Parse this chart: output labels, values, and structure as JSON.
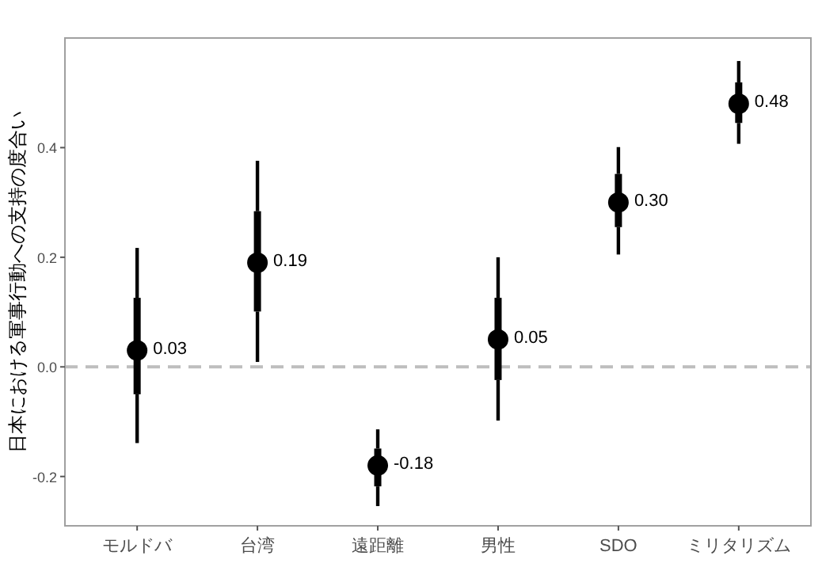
{
  "chart_data": {
    "type": "scatter",
    "ylabel": "日本における軍事行動への支持の度合い",
    "categories": [
      "モルドバ",
      "台湾",
      "遠距離",
      "男性",
      "SDO",
      "ミリタリズム"
    ],
    "series": [
      {
        "type": "box",
        "color": "#000000",
        "boxes": [
          {
            "low": -0.139,
            "q1": -0.05,
            "median": 0.03,
            "q3": 0.126,
            "high": 0.217
          },
          {
            "low": 0.009,
            "q1": 0.101,
            "median": 0.19,
            "q3": 0.284,
            "high": 0.376
          },
          {
            "low": -0.254,
            "q1": -0.218,
            "median": -0.18,
            "q3": -0.149,
            "high": -0.114
          },
          {
            "low": -0.098,
            "q1": -0.024,
            "median": 0.05,
            "q3": 0.126,
            "high": 0.2
          },
          {
            "low": 0.205,
            "q1": 0.255,
            "median": 0.3,
            "q3": 0.352,
            "high": 0.401
          },
          {
            "low": 0.407,
            "q1": 0.445,
            "median": 0.48,
            "q3": 0.519,
            "high": 0.558
          }
        ]
      },
      {
        "color": "#000000",
        "values": [
          0.03,
          0.19,
          -0.18,
          0.05,
          0.3,
          0.48
        ],
        "value_labels": [
          "0.03",
          "0.19",
          "-0.18",
          "0.05",
          "0.30",
          "0.48"
        ]
      }
    ],
    "marker": "circle",
    "ylim": [
      -0.29,
      0.6
    ],
    "yticks": [
      -0.2,
      {
        "value": 0,
        "label": "0.0"
      },
      0.2,
      0.4
    ],
    "ref_lines": [
      {
        "axis": "y",
        "value": 0,
        "color": "#bebebe",
        "line_style": "dashed"
      }
    ],
    "grid": false
  }
}
